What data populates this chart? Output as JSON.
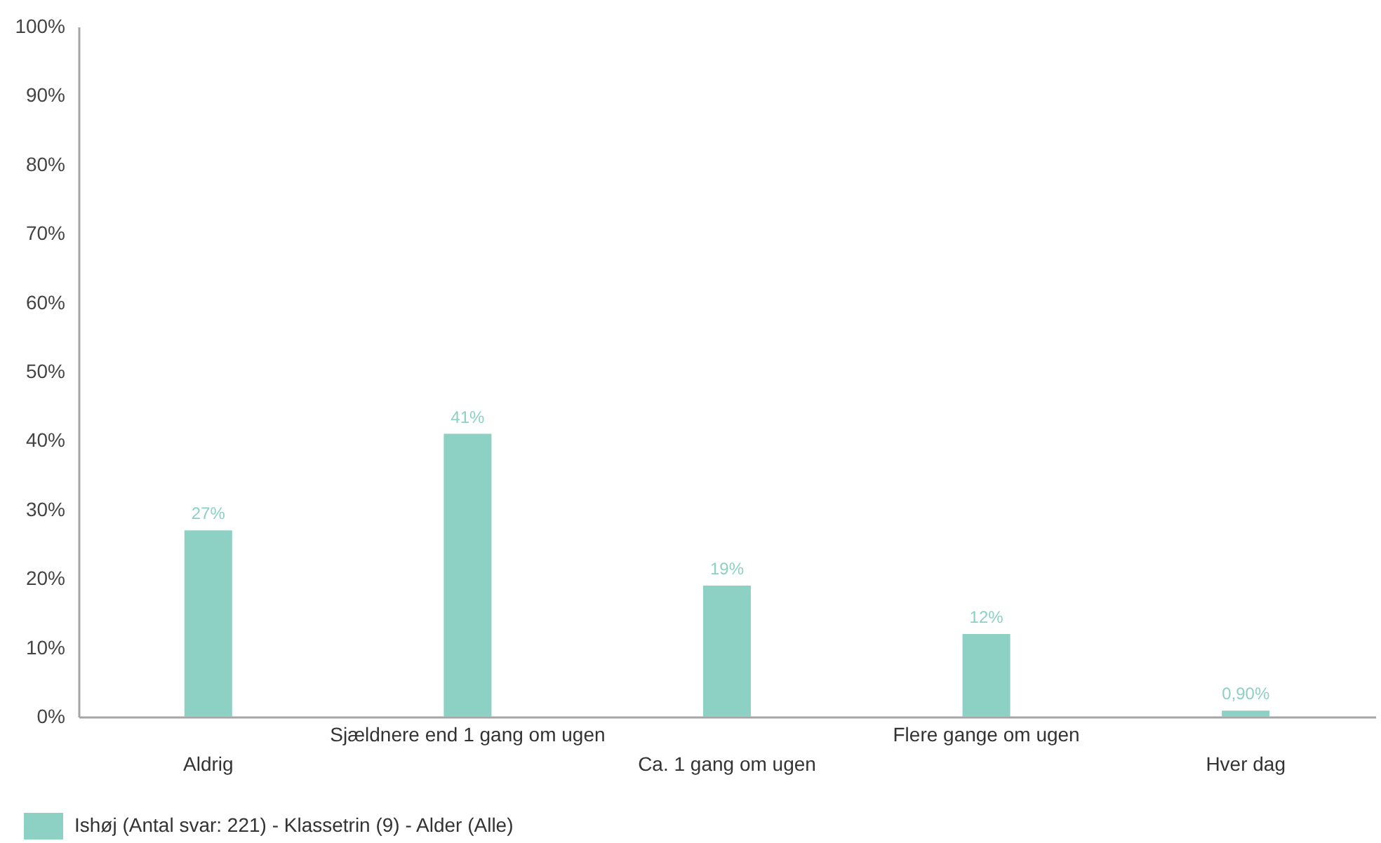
{
  "chart_data": {
    "type": "bar",
    "categories": [
      "Aldrig",
      "Sjældnere end 1 gang om ugen",
      "Ca. 1 gang om ugen",
      "Flere gange om ugen",
      "Hver dag"
    ],
    "series": [
      {
        "name": "Ishøj (Antal svar: 221)  - Klassetrin (9) - Alder (Alle)",
        "color": "#8dd0c4",
        "values": [
          27,
          41,
          19,
          12,
          0.9
        ],
        "value_labels": [
          "27%",
          "41%",
          "19%",
          "12%",
          "0,90%"
        ]
      }
    ],
    "ylim": [
      0,
      100
    ],
    "yticks": [
      {
        "value": 0,
        "label": "0%"
      },
      {
        "value": 10,
        "label": "10%"
      },
      {
        "value": 20,
        "label": "20%"
      },
      {
        "value": 30,
        "label": "30%"
      },
      {
        "value": 40,
        "label": "40%"
      },
      {
        "value": 50,
        "label": "50%"
      },
      {
        "value": 60,
        "label": "60%"
      },
      {
        "value": 70,
        "label": "70%"
      },
      {
        "value": 80,
        "label": "80%"
      },
      {
        "value": 90,
        "label": "90%"
      },
      {
        "value": 100,
        "label": "100%"
      }
    ],
    "grid": false,
    "legend": "bottom"
  }
}
